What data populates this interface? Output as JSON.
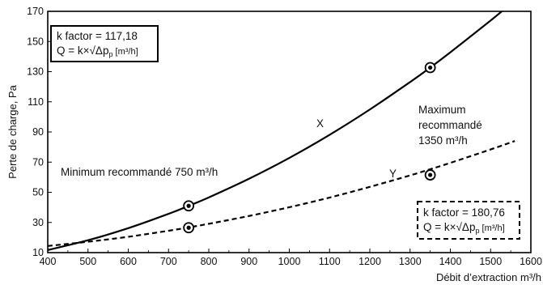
{
  "chart_data": {
    "type": "line",
    "xlabel": "Débit d’extraction m³/h",
    "ylabel": "Perte de charge, Pa",
    "xlim": [
      400,
      1600
    ],
    "ylim": [
      10,
      170
    ],
    "x_ticks": [
      "400",
      "500",
      "600",
      "700",
      "800",
      "900",
      "1000",
      "1100",
      "1200",
      "1300",
      "1400",
      "1500",
      "1600"
    ],
    "y_ticks": [
      "10",
      "30",
      "50",
      "70",
      "90",
      "110",
      "130",
      "150",
      "170"
    ],
    "grid": false,
    "series": [
      {
        "name": "X",
        "style": "solid",
        "color": "#000000",
        "x": [
          400,
          500,
          600,
          700,
          750,
          800,
          900,
          1000,
          1100,
          1200,
          1300,
          1350,
          1400,
          1500,
          1530
        ],
        "y": [
          11.7,
          18.2,
          26.2,
          35.7,
          41.0,
          46.6,
          59.0,
          72.8,
          88.1,
          104.9,
          123.1,
          132.7,
          142.8,
          163.9,
          170.5
        ]
      },
      {
        "name": "Y",
        "style": "dashed",
        "color": "#000000",
        "x": [
          400,
          500,
          600,
          700,
          750,
          800,
          900,
          1000,
          1100,
          1200,
          1300,
          1350,
          1400,
          1500,
          1560
        ],
        "y": [
          4.9,
          7.7,
          11.0,
          15.0,
          17.2,
          19.6,
          24.8,
          30.6,
          37.0,
          44.1,
          51.7,
          55.8,
          60.0,
          68.9,
          74.5
        ]
      }
    ],
    "markers": [
      {
        "x": 750,
        "y": 41.0
      },
      {
        "x": 750,
        "y": 26.5
      },
      {
        "x": 1350,
        "y": 132.7
      },
      {
        "x": 1350,
        "y": 61.5
      }
    ],
    "annotations": {
      "x_curve_label": "X",
      "y_curve_label": "Y",
      "min_label": "Minimum recommandé 750 m³/h",
      "max_line1": "Maximum",
      "max_line2": "recommandé",
      "max_line3": "1350 m³/h",
      "box_x": {
        "line1": "k factor = 117,18",
        "line2_main": "Q = k×√Δp",
        "line2_sub": "p",
        "line2_unit": " [m³/h]"
      },
      "box_y": {
        "line1": "k factor = 180,76",
        "line2_main": "Q = k×√Δp",
        "line2_sub": "p",
        "line2_unit": " [m³/h]"
      }
    }
  }
}
